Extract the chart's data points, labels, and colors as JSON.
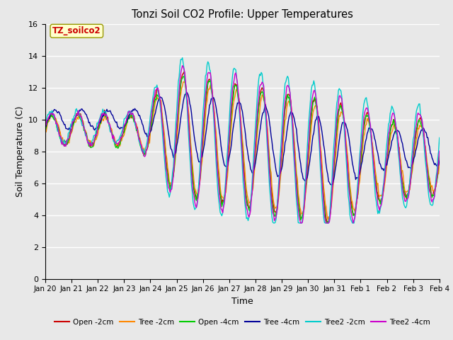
{
  "title": "Tonzi Soil CO2 Profile: Upper Temperatures",
  "xlabel": "Time",
  "ylabel": "Soil Temperature (C)",
  "ylim": [
    0,
    16
  ],
  "yticks": [
    0,
    2,
    4,
    6,
    8,
    10,
    12,
    14,
    16
  ],
  "xtick_labels": [
    "Jan 20",
    "Jan 21",
    "Jan 22",
    "Jan 23",
    "Jan 24",
    "Jan 25",
    "Jan 26",
    "Jan 27",
    "Jan 28",
    "Jan 29",
    "Jan 30",
    "Jan 31",
    "Feb 1",
    "Feb 2",
    "Feb 3",
    "Feb 4"
  ],
  "annotation_text": "TZ_soilco2",
  "annotation_box_color": "#FFFFCC",
  "annotation_text_color": "#CC0000",
  "annotation_border_color": "#999900",
  "background_color": "#E8E8E8",
  "legend_colors": [
    "#CC0000",
    "#FF8800",
    "#00CC00",
    "#000099",
    "#00CCCC",
    "#CC00CC"
  ],
  "legend_labels": [
    "Open -2cm",
    "Tree -2cm",
    "Open -4cm",
    "Tree -4cm",
    "Tree2 -2cm",
    "Tree2 -4cm"
  ],
  "figsize": [
    6.4,
    4.8
  ],
  "dpi": 100
}
